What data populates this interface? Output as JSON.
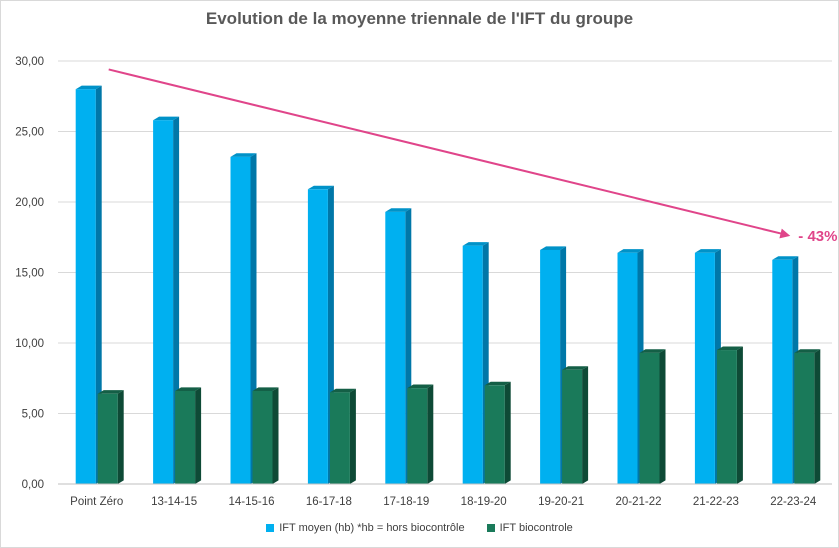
{
  "chart_data": {
    "type": "bar",
    "title": "Evolution de la moyenne triennale de l'IFT du groupe",
    "categories": [
      "Point Zéro",
      "13-14-15",
      "14-15-16",
      "16-17-18",
      "17-18-19",
      "18-19-20",
      "19-20-21",
      "20-21-22",
      "21-22-23",
      "22-23-24"
    ],
    "series": [
      {
        "name": "IFT moyen (hb) *hb = hors biocontrôle",
        "values": [
          28.0,
          25.8,
          23.2,
          20.9,
          19.3,
          16.9,
          16.6,
          16.4,
          16.4,
          15.9
        ],
        "color": "#00b0f0",
        "side_color": "#0077a8",
        "top_color": "#0092c8"
      },
      {
        "name": "IFT biocontrole",
        "values": [
          6.4,
          6.6,
          6.6,
          6.5,
          6.8,
          7.0,
          8.1,
          9.3,
          9.5,
          9.3
        ],
        "color": "#1a7a5a",
        "side_color": "#0e4a36",
        "top_color": "#145f46"
      }
    ],
    "ylim": [
      0,
      30
    ],
    "yticks": [
      "0,00",
      "5,00",
      "10,00",
      "15,00",
      "20,00",
      "25,00",
      "30,00"
    ],
    "ytick_values": [
      0,
      5,
      10,
      15,
      20,
      25,
      30
    ],
    "grid": true,
    "legend_position": "bottom",
    "annotation": {
      "text": "- 43%",
      "color": "#e0458a",
      "arrow_from": {
        "category": "Point Zéro",
        "value": 29.4
      },
      "arrow_to": {
        "category": "22-23-24",
        "value": 17.6
      }
    }
  }
}
